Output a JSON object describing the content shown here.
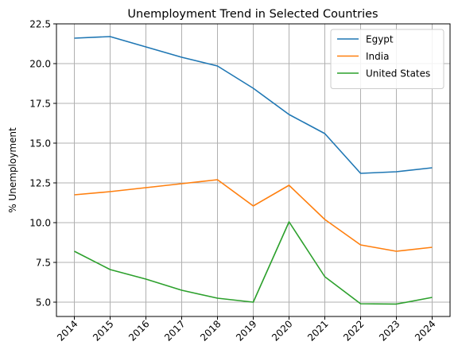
{
  "chart_data": {
    "type": "line",
    "title": "Unemployment Trend in Selected Countries",
    "xlabel": "",
    "ylabel": "% Unemployment",
    "x": [
      "2014",
      "2015",
      "2016",
      "2017",
      "2018",
      "2019",
      "2020",
      "2021",
      "2022",
      "2023",
      "2024"
    ],
    "ylim": [
      4.1,
      22.5
    ],
    "yticks": [
      5.0,
      7.5,
      10.0,
      12.5,
      15.0,
      17.5,
      20.0,
      22.5
    ],
    "ytick_labels": [
      "5.0",
      "7.5",
      "10.0",
      "12.5",
      "15.0",
      "17.5",
      "20.0",
      "22.5"
    ],
    "grid": true,
    "legend_position": "top-right",
    "series": [
      {
        "name": "Egypt",
        "color": "#1f77b4",
        "values": [
          21.6,
          21.7,
          21.05,
          20.4,
          19.85,
          18.45,
          16.8,
          15.6,
          13.1,
          13.2,
          13.45
        ]
      },
      {
        "name": "India",
        "color": "#ff7f0e",
        "values": [
          11.75,
          11.95,
          12.2,
          12.45,
          12.7,
          11.05,
          12.35,
          10.2,
          8.6,
          8.2,
          8.45
        ]
      },
      {
        "name": "United States",
        "color": "#2ca02c",
        "values": [
          8.2,
          7.05,
          6.45,
          5.75,
          5.25,
          5.0,
          10.05,
          6.6,
          4.9,
          4.88,
          5.3
        ]
      }
    ]
  }
}
